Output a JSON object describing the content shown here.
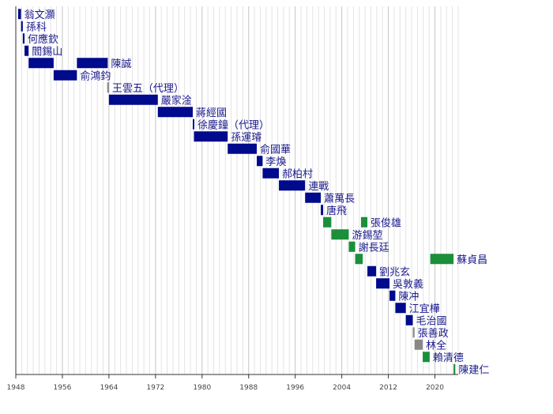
{
  "chart_data": {
    "type": "bar",
    "orientation": "horizontal-timeline",
    "title": "",
    "xlabel": "",
    "ylabel": "",
    "xlim": [
      1948,
      2024
    ],
    "x_ticks": [
      1948,
      1956,
      1964,
      1972,
      1980,
      1988,
      1996,
      2004,
      2012,
      2020
    ],
    "minor_grid_every": 1,
    "grid": true,
    "party_colors": {
      "KMT": "#000a8c",
      "DPP": "#1b8f3a",
      "Independent": "#888888"
    },
    "rows": [
      {
        "label": "翁文灝",
        "terms": [
          [
            1948.4,
            1948.9
          ]
        ],
        "party": "KMT"
      },
      {
        "label": "孫科",
        "terms": [
          [
            1948.9,
            1949.2
          ]
        ],
        "party": "KMT"
      },
      {
        "label": "何應欽",
        "terms": [
          [
            1949.2,
            1949.5
          ]
        ],
        "party": "KMT"
      },
      {
        "label": "閻錫山",
        "terms": [
          [
            1949.5,
            1950.2
          ]
        ],
        "party": "KMT"
      },
      {
        "label": "陳誠",
        "terms": [
          [
            1950.2,
            1954.5
          ],
          [
            1958.5,
            1963.8
          ]
        ],
        "party": "KMT"
      },
      {
        "label": "俞鴻鈞",
        "terms": [
          [
            1954.5,
            1958.5
          ]
        ],
        "party": "KMT"
      },
      {
        "label": "王雲五（代理）",
        "terms": [
          [
            1963.7,
            1964.0
          ]
        ],
        "party": "Independent"
      },
      {
        "label": "嚴家淦",
        "terms": [
          [
            1964.0,
            1972.4
          ]
        ],
        "party": "KMT"
      },
      {
        "label": "蔣經國",
        "terms": [
          [
            1972.4,
            1978.4
          ]
        ],
        "party": "KMT"
      },
      {
        "label": "徐慶鐘（代理）",
        "terms": [
          [
            1978.4,
            1978.6
          ]
        ],
        "party": "KMT"
      },
      {
        "label": "孫運璿",
        "terms": [
          [
            1978.6,
            1984.4
          ]
        ],
        "party": "KMT"
      },
      {
        "label": "俞國華",
        "terms": [
          [
            1984.4,
            1989.4
          ]
        ],
        "party": "KMT"
      },
      {
        "label": "李煥",
        "terms": [
          [
            1989.4,
            1990.4
          ]
        ],
        "party": "KMT"
      },
      {
        "label": "郝柏村",
        "terms": [
          [
            1990.4,
            1993.2
          ]
        ],
        "party": "KMT"
      },
      {
        "label": "連戰",
        "terms": [
          [
            1993.2,
            1997.7
          ]
        ],
        "party": "KMT"
      },
      {
        "label": "蕭萬長",
        "terms": [
          [
            1997.7,
            2000.4
          ]
        ],
        "party": "KMT"
      },
      {
        "label": "唐飛",
        "terms": [
          [
            2000.4,
            2000.8
          ]
        ],
        "party": "KMT"
      },
      {
        "label": "張俊雄",
        "terms": [
          [
            2000.8,
            2002.2
          ],
          [
            2007.3,
            2008.4
          ]
        ],
        "party": "DPP"
      },
      {
        "label": "游錫堃",
        "terms": [
          [
            2002.2,
            2005.2
          ]
        ],
        "party": "DPP"
      },
      {
        "label": "謝長廷",
        "terms": [
          [
            2005.2,
            2006.3
          ]
        ],
        "party": "DPP"
      },
      {
        "label": "蘇貞昌",
        "terms": [
          [
            2006.3,
            2007.6
          ],
          [
            2019.2,
            2023.2
          ]
        ],
        "party": "DPP"
      },
      {
        "label": "劉兆玄",
        "terms": [
          [
            2008.4,
            2009.9
          ]
        ],
        "party": "KMT"
      },
      {
        "label": "吳敦義",
        "terms": [
          [
            2009.9,
            2012.2
          ]
        ],
        "party": "KMT"
      },
      {
        "label": "陳冲",
        "terms": [
          [
            2012.2,
            2013.2
          ]
        ],
        "party": "KMT"
      },
      {
        "label": "江宜樺",
        "terms": [
          [
            2013.2,
            2015.0
          ]
        ],
        "party": "KMT"
      },
      {
        "label": "毛治國",
        "terms": [
          [
            2015.0,
            2016.2
          ]
        ],
        "party": "KMT"
      },
      {
        "label": "張善政",
        "terms": [
          [
            2016.2,
            2016.5
          ]
        ],
        "party": "Independent"
      },
      {
        "label": "林全",
        "terms": [
          [
            2016.5,
            2017.9
          ]
        ],
        "party": "Independent"
      },
      {
        "label": "賴清德",
        "terms": [
          [
            2017.9,
            2019.1
          ]
        ],
        "party": "DPP"
      },
      {
        "label": "陳建仁",
        "terms": [
          [
            2023.2,
            2023.5
          ]
        ],
        "party": "DPP"
      }
    ]
  }
}
